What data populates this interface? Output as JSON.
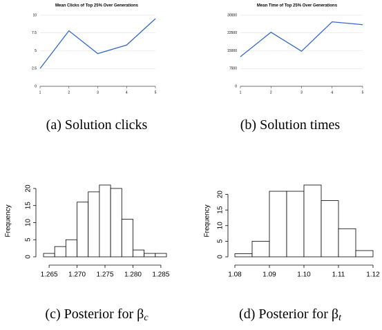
{
  "chart_data": [
    {
      "type": "line",
      "title": "Mean Clicks of Top 25% Over Generations",
      "x": [
        1,
        2,
        3,
        4,
        5
      ],
      "series": [
        {
          "color": "#3366cc",
          "values": [
            2.5,
            7.8,
            4.6,
            5.8,
            9.5
          ]
        }
      ],
      "xlim": [
        1,
        5
      ],
      "xticks": [
        1,
        2,
        3,
        4,
        5
      ],
      "ylim": [
        0,
        10
      ],
      "yticks": [
        0,
        2.5,
        5,
        7.5,
        10
      ],
      "grid": true,
      "caption": "(a) Solution clicks"
    },
    {
      "type": "line",
      "title": "Mean Time of Top 25% Over Generations",
      "x": [
        1,
        2,
        3,
        4,
        5
      ],
      "series": [
        {
          "color": "#3366cc",
          "values": [
            12500,
            22800,
            14800,
            27200,
            26000
          ]
        }
      ],
      "xlim": [
        1,
        5
      ],
      "xticks": [
        1,
        2,
        3,
        4,
        5
      ],
      "ylim": [
        0,
        30000
      ],
      "yticks": [
        0,
        7500,
        15000,
        22500,
        30000
      ],
      "grid": true,
      "caption": "(b) Solution times"
    },
    {
      "type": "histogram",
      "y_label": "Frequency",
      "bins": [
        1.264,
        1.266,
        1.268,
        1.27,
        1.272,
        1.274,
        1.276,
        1.278,
        1.28,
        1.282,
        1.284,
        1.286
      ],
      "values": [
        1,
        3,
        5,
        16,
        19,
        21,
        20,
        11,
        2,
        1,
        1
      ],
      "color": "#ffffff",
      "xlim": [
        1.264,
        1.286
      ],
      "xticks": [
        1.265,
        {
          "value": 1.27,
          "label": "1.270"
        },
        1.275,
        {
          "value": 1.28,
          "label": "1.280"
        },
        1.285
      ],
      "ylim": [
        0,
        21
      ],
      "yticks": [
        0,
        5,
        10,
        15,
        20
      ],
      "caption": "(c) Posterior for β",
      "caption_subscript": "c"
    },
    {
      "type": "histogram",
      "y_label": "Frequency",
      "bins": [
        1.08,
        1.085,
        1.09,
        1.095,
        1.1,
        1.105,
        1.11,
        1.115,
        1.12
      ],
      "values": [
        1,
        5,
        21,
        21,
        23,
        18,
        9,
        2
      ],
      "color": "#ffffff",
      "xlim": [
        1.08,
        1.12
      ],
      "xticks": [
        1.08,
        1.09,
        {
          "value": 1.1,
          "label": "1.10"
        },
        1.11,
        1.12
      ],
      "ylim": [
        0,
        23
      ],
      "yticks": [
        0,
        5,
        10,
        15,
        20
      ],
      "caption": "(d) Posterior for β",
      "caption_subscript": "t"
    }
  ]
}
